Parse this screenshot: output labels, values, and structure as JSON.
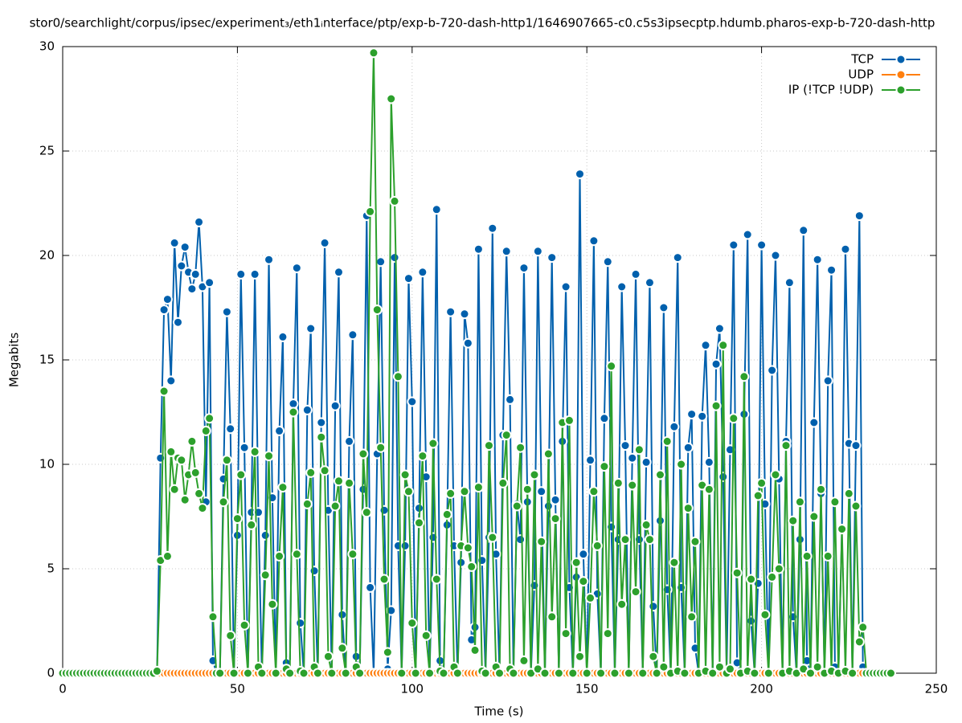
{
  "chart_data": {
    "type": "line",
    "title": "stor0/searchlight/corpus/ipsec/experiment₃/eth1ᵢnterface/ptp/exp-b-720-dash-http1/1646907665-c0.c5s3ipsecptp.hdumb.pharos-exp-b-720-dash-http",
    "x_label": "Time (s)",
    "y_label": "Megabits",
    "xlim": [
      0,
      250
    ],
    "xticks": [
      0,
      50,
      100,
      150,
      200,
      250
    ],
    "ylim": [
      0,
      30
    ],
    "yticks": [
      0,
      5,
      10,
      15,
      20,
      25,
      30
    ],
    "grid": true,
    "legend": "top-right",
    "x": [
      0,
      1,
      2,
      3,
      4,
      5,
      6,
      7,
      8,
      9,
      10,
      11,
      12,
      13,
      14,
      15,
      16,
      17,
      18,
      19,
      20,
      21,
      22,
      23,
      24,
      25,
      26,
      27,
      28,
      29,
      30,
      31,
      32,
      33,
      34,
      35,
      36,
      37,
      38,
      39,
      40,
      41,
      42,
      43,
      44,
      45,
      46,
      47,
      48,
      49,
      50,
      51,
      52,
      53,
      54,
      55,
      56,
      57,
      58,
      59,
      60,
      61,
      62,
      63,
      64,
      65,
      66,
      67,
      68,
      69,
      70,
      71,
      72,
      73,
      74,
      75,
      76,
      77,
      78,
      79,
      80,
      81,
      82,
      83,
      84,
      85,
      86,
      87,
      88,
      89,
      90,
      91,
      92,
      93,
      94,
      95,
      96,
      97,
      98,
      99,
      100,
      101,
      102,
      103,
      104,
      105,
      106,
      107,
      108,
      109,
      110,
      111,
      112,
      113,
      114,
      115,
      116,
      117,
      118,
      119,
      120,
      121,
      122,
      123,
      124,
      125,
      126,
      127,
      128,
      129,
      130,
      131,
      132,
      133,
      134,
      135,
      136,
      137,
      138,
      139,
      140,
      141,
      142,
      143,
      144,
      145,
      146,
      147,
      148,
      149,
      150,
      151,
      152,
      153,
      154,
      155,
      156,
      157,
      158,
      159,
      160,
      161,
      162,
      163,
      164,
      165,
      166,
      167,
      168,
      169,
      170,
      171,
      172,
      173,
      174,
      175,
      176,
      177,
      178,
      179,
      180,
      181,
      182,
      183,
      184,
      185,
      186,
      187,
      188,
      189,
      190,
      191,
      192,
      193,
      194,
      195,
      196,
      197,
      198,
      199,
      200,
      201,
      202,
      203,
      204,
      205,
      206,
      207,
      208,
      209,
      210,
      211,
      212,
      213,
      214,
      215,
      216,
      217,
      218,
      219,
      220,
      221,
      222,
      223,
      224,
      225,
      226,
      227,
      228,
      229,
      230,
      231,
      232,
      233,
      234,
      235,
      236,
      237
    ],
    "series": [
      {
        "name": "TCP",
        "color": "#0060ad",
        "values": [
          0,
          0,
          0,
          0,
          0,
          0,
          0,
          0,
          0,
          0,
          0,
          0,
          0,
          0,
          0,
          0,
          0,
          0,
          0,
          0,
          0,
          0,
          0,
          0,
          0,
          0,
          0,
          0,
          10.3,
          17.4,
          17.9,
          14,
          20.6,
          16.8,
          19.5,
          20.4,
          19.2,
          18.4,
          19.1,
          21.6,
          18.5,
          8.2,
          18.7,
          0.6,
          0,
          0,
          9.3,
          17.3,
          11.7,
          0,
          6.6,
          19.1,
          10.8,
          0,
          7.7,
          19.1,
          7.7,
          0,
          6.6,
          19.8,
          8.4,
          0,
          11.6,
          16.1,
          0.5,
          0,
          12.9,
          19.4,
          2.4,
          0,
          12.6,
          16.5,
          4.9,
          0,
          12,
          20.6,
          7.8,
          0,
          12.8,
          19.2,
          2.8,
          0,
          11.1,
          16.2,
          0.8,
          0,
          8.8,
          21.9,
          4.1,
          0,
          10.5,
          19.7,
          7.8,
          0.2,
          3,
          19.9,
          6.1,
          0,
          6.1,
          18.9,
          13,
          0,
          7.9,
          19.2,
          9.4,
          0,
          6.5,
          22.2,
          0.6,
          0,
          7.1,
          17.3,
          6.1,
          0,
          5.3,
          17.2,
          15.8,
          1.6,
          2.2,
          20.3,
          5.4,
          0,
          6.5,
          21.3,
          5.7,
          0,
          11.4,
          20.2,
          13.1,
          0,
          8.1,
          6.4,
          19.4,
          8.2,
          0,
          4.2,
          20.2,
          8.7,
          0,
          8,
          19.9,
          8.3,
          0,
          11.1,
          18.5,
          4.1,
          0,
          4.6,
          23.9,
          5.7,
          0,
          10.2,
          20.7,
          3.8,
          0,
          12.2,
          19.7,
          7,
          0,
          6.4,
          18.5,
          10.9,
          0,
          10.3,
          19.1,
          6.4,
          0,
          10.1,
          18.7,
          3.2,
          0,
          7.3,
          17.5,
          4,
          0,
          11.8,
          19.9,
          4.1,
          0,
          10.8,
          12.4,
          1.2,
          0,
          12.3,
          15.7,
          10.1,
          0,
          14.8,
          16.5,
          9.4,
          0,
          10.7,
          20.5,
          0.5,
          0,
          12.4,
          21,
          2.5,
          0,
          4.3,
          20.5,
          8.1,
          0,
          14.5,
          20,
          9.3,
          0,
          11.1,
          18.7,
          2.7,
          0,
          6.4,
          21.2,
          0.6,
          0,
          12,
          19.8,
          8.6,
          0,
          14,
          19.3,
          0.3,
          0,
          6.9,
          20.3,
          11,
          0,
          10.9,
          21.9,
          0.3,
          0,
          0,
          0,
          0,
          0,
          0,
          0,
          0
        ]
      },
      {
        "name": "UDP",
        "color": "#ff7f0e",
        "values": [
          0,
          0,
          0,
          0,
          0,
          0,
          0,
          0,
          0,
          0,
          0,
          0,
          0,
          0,
          0,
          0,
          0,
          0,
          0,
          0,
          0,
          0,
          0,
          0,
          0,
          0,
          0,
          0,
          0,
          0,
          0,
          0,
          0,
          0,
          0,
          0,
          0,
          0,
          0,
          0,
          0,
          0,
          0,
          0,
          0,
          0,
          0,
          0,
          0,
          0,
          0,
          0,
          0,
          0,
          0,
          0,
          0,
          0,
          0,
          0,
          0,
          0,
          0,
          0,
          0,
          0,
          0,
          0,
          0,
          0,
          0,
          0,
          0,
          0,
          0,
          0,
          0,
          0,
          0,
          0,
          0,
          0,
          0,
          0,
          0,
          0,
          0,
          0,
          0,
          0,
          0,
          0,
          0,
          0,
          0,
          0,
          0,
          0,
          0,
          0,
          0,
          0,
          0,
          0,
          0,
          0,
          0,
          0,
          0,
          0,
          0,
          0,
          0,
          0,
          0,
          0,
          0,
          0,
          0,
          0,
          0,
          0,
          0,
          0,
          0,
          0,
          0,
          0,
          0,
          0,
          0,
          0,
          0,
          0,
          0,
          0,
          0,
          0,
          0,
          0,
          0,
          0,
          0,
          0,
          0,
          0,
          0,
          0,
          0,
          0,
          0,
          0,
          0,
          0,
          0,
          0,
          0,
          0,
          0,
          0,
          0,
          0,
          0,
          0,
          0,
          0,
          0,
          0,
          0,
          0,
          0,
          0,
          0,
          0,
          0,
          0,
          0,
          0,
          0,
          0,
          0,
          0,
          0,
          0,
          0,
          0,
          0,
          0,
          0,
          0,
          0,
          0,
          0,
          0,
          0,
          0,
          0,
          0,
          0,
          0,
          0,
          0,
          0,
          0,
          0,
          0,
          0,
          0,
          0,
          0,
          0,
          0,
          0,
          0,
          0,
          0,
          0,
          0,
          0,
          0,
          0,
          0,
          0,
          0,
          0,
          0,
          0,
          0,
          0,
          0,
          0,
          0,
          0,
          0,
          0,
          0,
          0,
          0
        ]
      },
      {
        "name": "IP (!TCP  !UDP)",
        "color": "#2ca02c",
        "values": [
          0,
          0,
          0,
          0,
          0,
          0,
          0,
          0,
          0,
          0,
          0,
          0,
          0,
          0,
          0,
          0,
          0,
          0,
          0,
          0,
          0,
          0,
          0,
          0,
          0,
          0,
          0,
          0.1,
          5.4,
          13.5,
          5.6,
          10.6,
          8.8,
          10.3,
          10.2,
          8.3,
          9.5,
          11.1,
          9.6,
          8.6,
          7.9,
          11.6,
          12.2,
          2.7,
          0,
          0,
          8.2,
          10.2,
          1.8,
          0,
          7.4,
          9.5,
          2.3,
          0,
          7.1,
          10.6,
          0.3,
          0,
          4.7,
          10.4,
          3.3,
          0,
          5.6,
          8.9,
          0.2,
          0,
          12.5,
          5.7,
          0.1,
          0,
          8.1,
          9.6,
          0.3,
          0,
          11.3,
          9.7,
          0.8,
          0,
          8,
          9.2,
          1.2,
          0,
          9.1,
          5.7,
          0.3,
          0,
          10.5,
          7.7,
          22.1,
          29.7,
          17.4,
          10.8,
          4.5,
          1,
          27.5,
          22.6,
          14.2,
          0,
          9.5,
          8.7,
          2.4,
          0,
          7.2,
          10.4,
          1.8,
          0,
          11,
          4.5,
          0.1,
          0,
          7.6,
          8.6,
          0.3,
          0,
          6.1,
          8.7,
          6,
          5.1,
          1.1,
          8.9,
          0.1,
          0,
          10.9,
          6.5,
          0.3,
          0,
          9.1,
          11.4,
          0.2,
          0,
          8,
          10.8,
          0.6,
          8.8,
          0,
          9.5,
          0.2,
          6.3,
          0,
          10.5,
          2.7,
          7.4,
          0,
          12,
          1.9,
          12.1,
          0,
          5.3,
          0.8,
          4.4,
          0,
          3.6,
          8.7,
          6.1,
          0,
          9.9,
          1.9,
          14.7,
          0,
          9.1,
          3.3,
          6.4,
          0,
          9,
          3.9,
          10.7,
          0,
          7.1,
          6.4,
          0.8,
          0,
          9.5,
          0.3,
          11.1,
          0,
          5.3,
          0.1,
          10,
          0,
          7.9,
          2.7,
          6.3,
          0,
          9,
          0.1,
          8.8,
          0,
          12.8,
          0.3,
          15.7,
          0,
          0.2,
          12.2,
          4.8,
          0,
          14.2,
          0.1,
          4.5,
          0,
          8.5,
          9.1,
          2.8,
          0,
          4.6,
          9.5,
          5,
          0,
          10.9,
          0.1,
          7.3,
          0,
          8.2,
          0.2,
          5.6,
          0,
          7.5,
          0.3,
          8.8,
          0,
          5.6,
          0.1,
          8.2,
          0,
          6.9,
          0.1,
          8.6,
          0,
          8,
          1.5,
          2.2,
          0,
          0,
          0,
          0,
          0,
          0,
          0,
          0
        ]
      }
    ]
  }
}
